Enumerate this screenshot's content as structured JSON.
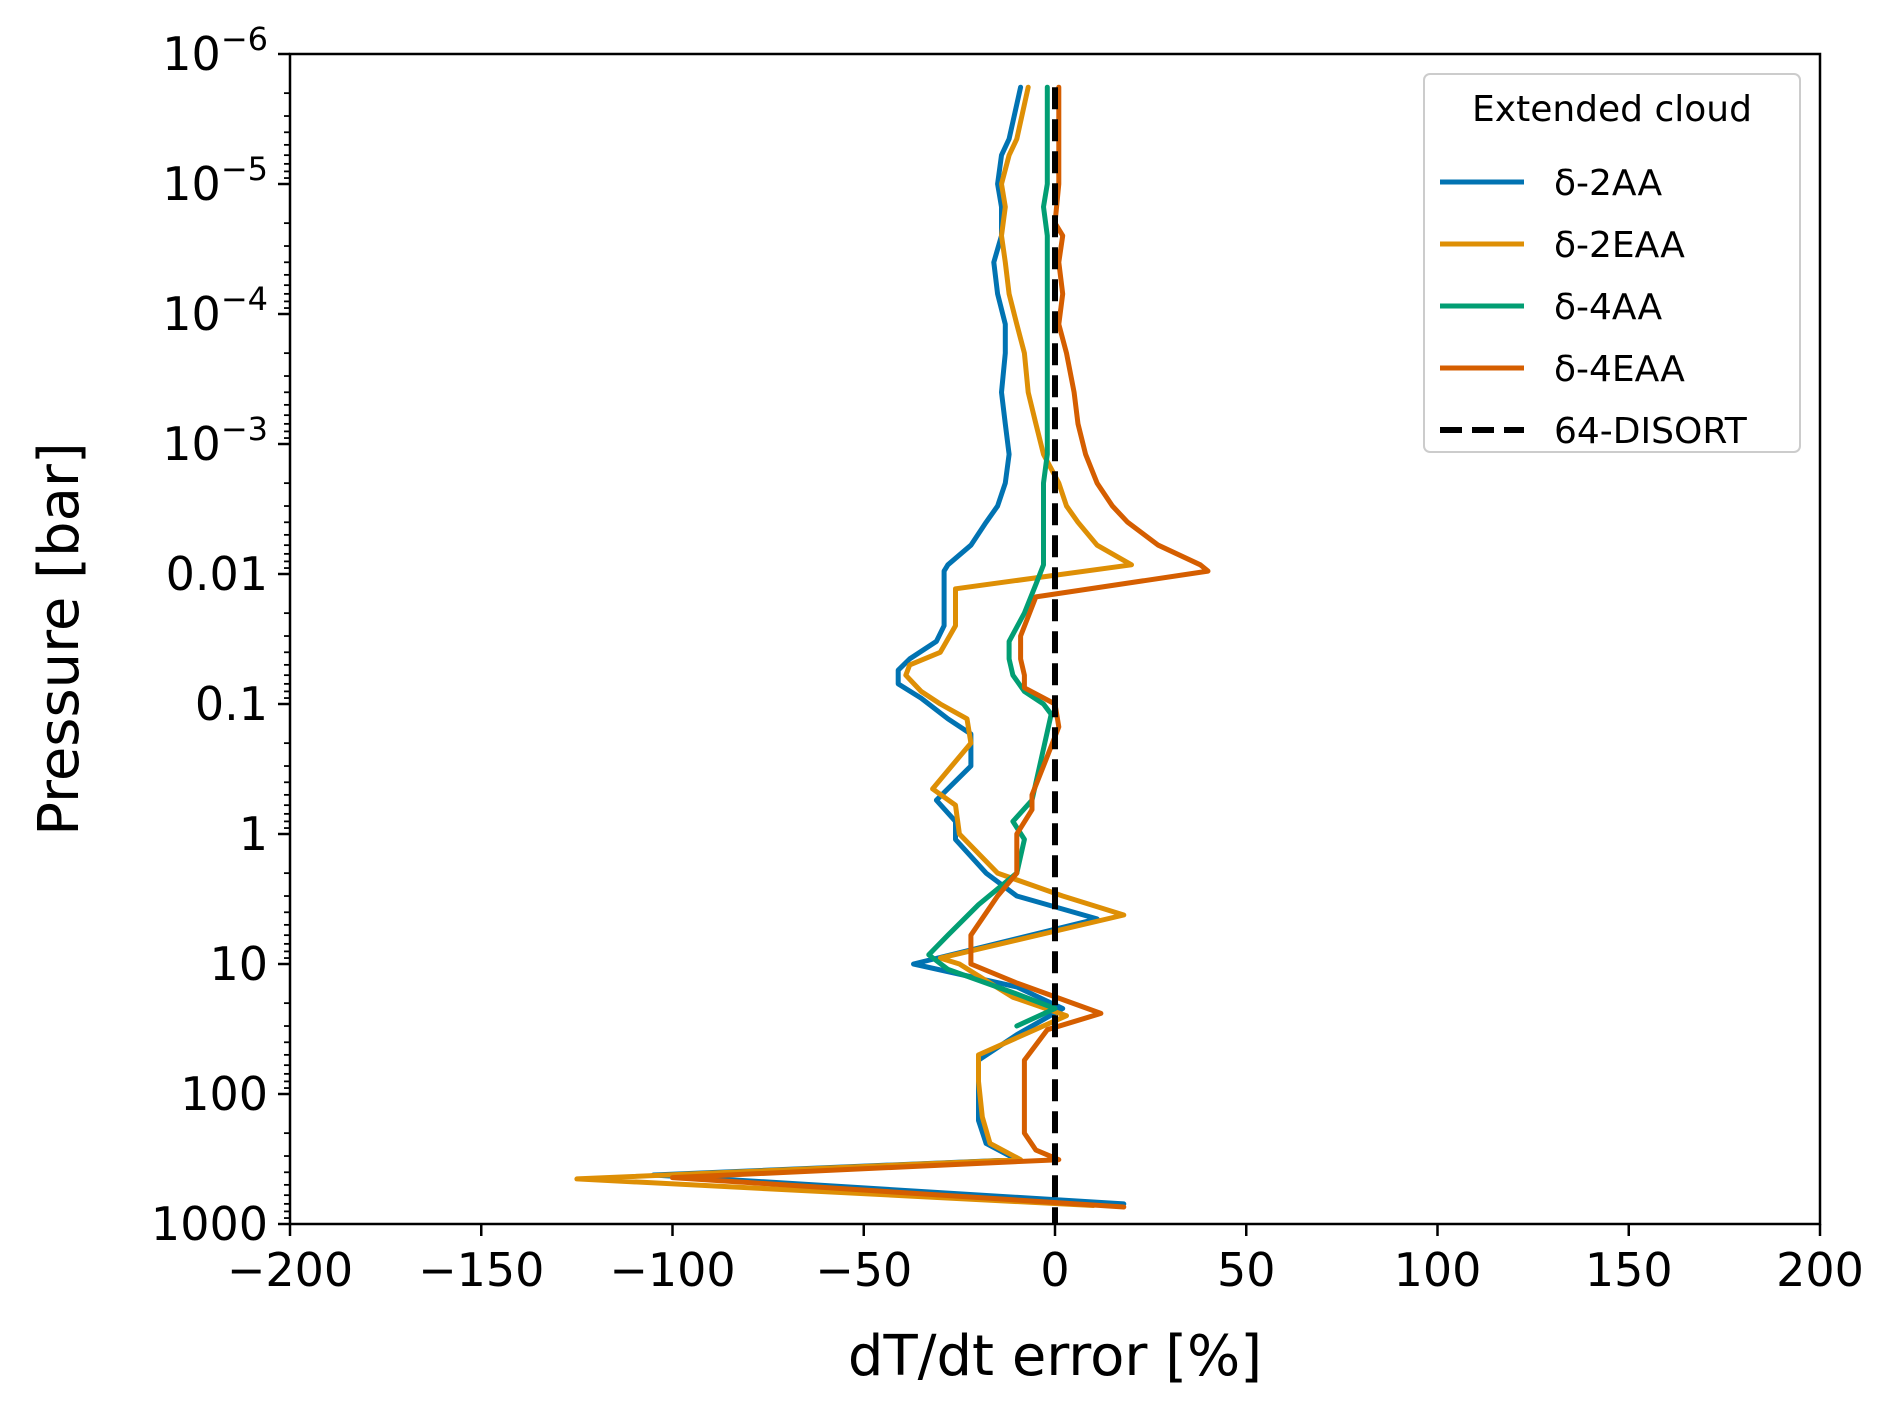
{
  "chart_data": {
    "type": "line",
    "xlabel": "dT/dt error [%]",
    "ylabel": "Pressure [bar]",
    "xlim": [
      -200,
      200
    ],
    "ylim": [
      1e-06,
      1000
    ],
    "yscale": "log",
    "y_inverted": true,
    "grid": false,
    "legend": {
      "placement": "top-right",
      "title": "Extended cloud",
      "entries": [
        "δ-2AA",
        "δ-2EAA",
        "δ-4AA",
        "δ-4EAA",
        "64-DISORT"
      ]
    },
    "x_ticks": [
      -200,
      -150,
      -100,
      -50,
      0,
      50,
      100,
      150,
      200
    ],
    "x_tick_labels": [
      "−200",
      "−150",
      "−100",
      "−50",
      "0",
      "50",
      "100",
      "150",
      "200"
    ],
    "y_tick_labels": [
      {
        "value": 1e-06,
        "base": "10",
        "exp": "−6"
      },
      {
        "value": 1e-05,
        "base": "10",
        "exp": "−5"
      },
      {
        "value": 0.0001,
        "base": "10",
        "exp": "−4"
      },
      {
        "value": 0.001,
        "base": "10",
        "exp": "−3"
      },
      {
        "value": 0.01,
        "base": "0.01",
        "exp": ""
      },
      {
        "value": 0.1,
        "base": "0.1",
        "exp": ""
      },
      {
        "value": 1,
        "base": "1",
        "exp": ""
      },
      {
        "value": 10,
        "base": "10",
        "exp": ""
      },
      {
        "value": 100,
        "base": "100",
        "exp": ""
      },
      {
        "value": 1000,
        "base": "1000",
        "exp": ""
      }
    ],
    "series": [
      {
        "name": "δ-2AA",
        "color": "#0173b2",
        "dash": "solid",
        "points": [
          [
            -9,
            1.8e-06
          ],
          [
            -12,
            4.5e-06
          ],
          [
            -14,
            6e-06
          ],
          [
            -15,
            1e-05
          ],
          [
            -14,
            1.5e-05
          ],
          [
            -14,
            2.5e-05
          ],
          [
            -16,
            4e-05
          ],
          [
            -15,
            7e-05
          ],
          [
            -13,
            0.00012
          ],
          [
            -13,
            0.0002
          ],
          [
            -14,
            0.0004
          ],
          [
            -13,
            0.0007
          ],
          [
            -12,
            0.0012
          ],
          [
            -13,
            0.002
          ],
          [
            -15,
            0.003
          ],
          [
            -18,
            0.004
          ],
          [
            -22,
            0.006
          ],
          [
            -28,
            0.0085
          ],
          [
            -29,
            0.0095
          ],
          [
            -29,
            0.015
          ],
          [
            -29,
            0.025
          ],
          [
            -31,
            0.033
          ],
          [
            -38,
            0.045
          ],
          [
            -41,
            0.055
          ],
          [
            -41,
            0.07
          ],
          [
            -35,
            0.09
          ],
          [
            -28,
            0.13
          ],
          [
            -22,
            0.17
          ],
          [
            -22,
            0.3
          ],
          [
            -31,
            0.55
          ],
          [
            -26,
            0.8
          ],
          [
            -26,
            1.1
          ],
          [
            -18,
            2
          ],
          [
            -10,
            3
          ],
          [
            11,
            4.5
          ],
          [
            -37,
            10
          ],
          [
            -10,
            15
          ],
          [
            2,
            22
          ],
          [
            -10,
            35
          ],
          [
            -20,
            55
          ],
          [
            -20,
            80
          ],
          [
            -20,
            160
          ],
          [
            -18,
            240
          ],
          [
            -10,
            320
          ],
          [
            -105,
            420
          ],
          [
            18,
            700
          ]
        ]
      },
      {
        "name": "δ-2EAA",
        "color": "#de8f05",
        "dash": "solid",
        "points": [
          [
            -7,
            1.8e-06
          ],
          [
            -10,
            4.5e-06
          ],
          [
            -12,
            6e-06
          ],
          [
            -14,
            1e-05
          ],
          [
            -13,
            1.5e-05
          ],
          [
            -14,
            2.5e-05
          ],
          [
            -13,
            4e-05
          ],
          [
            -12,
            7e-05
          ],
          [
            -10,
            0.00012
          ],
          [
            -8,
            0.0002
          ],
          [
            -7,
            0.0004
          ],
          [
            -5,
            0.0007
          ],
          [
            -3,
            0.0012
          ],
          [
            1,
            0.002
          ],
          [
            3,
            0.003
          ],
          [
            6,
            0.004
          ],
          [
            11,
            0.006
          ],
          [
            20,
            0.0085
          ],
          [
            -26,
            0.013
          ],
          [
            -26,
            0.025
          ],
          [
            -30,
            0.04
          ],
          [
            -38,
            0.05
          ],
          [
            -39,
            0.06
          ],
          [
            -35,
            0.08
          ],
          [
            -30,
            0.1
          ],
          [
            -23,
            0.13
          ],
          [
            -22,
            0.2
          ],
          [
            -27,
            0.3
          ],
          [
            -32,
            0.45
          ],
          [
            -26,
            0.6
          ],
          [
            -25,
            1.0
          ],
          [
            -15,
            2
          ],
          [
            2,
            3
          ],
          [
            18,
            4.2
          ],
          [
            -30,
            9
          ],
          [
            -25,
            10
          ],
          [
            -11,
            18
          ],
          [
            3,
            25
          ],
          [
            -20,
            50
          ],
          [
            -20,
            80
          ],
          [
            -19,
            150
          ],
          [
            -17,
            240
          ],
          [
            -9,
            320
          ],
          [
            -125,
            450
          ],
          [
            10,
            720
          ]
        ]
      },
      {
        "name": "δ-4AA",
        "color": "#029e73",
        "dash": "solid",
        "points": [
          [
            -2,
            1.8e-06
          ],
          [
            -2,
            4.5e-06
          ],
          [
            -2,
            1e-05
          ],
          [
            -3,
            1.5e-05
          ],
          [
            -2,
            2.5e-05
          ],
          [
            -2,
            5e-05
          ],
          [
            -2,
            0.0001
          ],
          [
            -2,
            0.0002
          ],
          [
            -2,
            0.0004
          ],
          [
            -2,
            0.0007
          ],
          [
            -2,
            0.0012
          ],
          [
            -3,
            0.002
          ],
          [
            -3,
            0.004
          ],
          [
            -3,
            0.006
          ],
          [
            -3,
            0.0085
          ],
          [
            -5,
            0.012
          ],
          [
            -8,
            0.02
          ],
          [
            -12,
            0.033
          ],
          [
            -12,
            0.045
          ],
          [
            -11,
            0.06
          ],
          [
            -8,
            0.08
          ],
          [
            -3,
            0.1
          ],
          [
            -1,
            0.12
          ],
          [
            -6,
            0.55
          ],
          [
            -11,
            0.8
          ],
          [
            -8,
            1.1
          ],
          [
            -10,
            2
          ],
          [
            -20,
            3.5
          ],
          [
            -28,
            6
          ],
          [
            -33,
            8.5
          ],
          [
            -28,
            11
          ],
          [
            -10,
            17
          ],
          [
            0,
            22
          ],
          [
            -10,
            30
          ]
        ]
      },
      {
        "name": "δ-4EAA",
        "color": "#d55e00",
        "dash": "solid",
        "points": [
          [
            1,
            1.8e-06
          ],
          [
            1,
            1e-05
          ],
          [
            0,
            2e-05
          ],
          [
            2,
            2.5e-05
          ],
          [
            1,
            4e-05
          ],
          [
            2,
            7e-05
          ],
          [
            1,
            0.00012
          ],
          [
            3,
            0.0002
          ],
          [
            5,
            0.0004
          ],
          [
            6,
            0.0007
          ],
          [
            8,
            0.0012
          ],
          [
            11,
            0.002
          ],
          [
            15,
            0.003
          ],
          [
            19,
            0.004
          ],
          [
            27,
            0.006
          ],
          [
            38,
            0.0085
          ],
          [
            40,
            0.0095
          ],
          [
            -5,
            0.015
          ],
          [
            -9,
            0.03
          ],
          [
            -9,
            0.045
          ],
          [
            -8,
            0.06
          ],
          [
            -8,
            0.075
          ],
          [
            0,
            0.1
          ],
          [
            1,
            0.15
          ],
          [
            -3,
            0.3
          ],
          [
            -6,
            0.5
          ],
          [
            -6,
            0.65
          ],
          [
            -10,
            1.0
          ],
          [
            -10,
            1.2
          ],
          [
            -10,
            2
          ],
          [
            -15,
            3
          ],
          [
            -22,
            6
          ],
          [
            -22,
            10
          ],
          [
            -10,
            14
          ],
          [
            12,
            24
          ],
          [
            -2,
            32
          ],
          [
            -8,
            55
          ],
          [
            -8,
            80
          ],
          [
            -8,
            200
          ],
          [
            -5,
            270
          ],
          [
            1,
            320
          ],
          [
            -100,
            440
          ],
          [
            18,
            740
          ]
        ]
      },
      {
        "name": "64-DISORT",
        "color": "#000000",
        "dash": "dashed",
        "points": [
          [
            0,
            1.8e-06
          ],
          [
            0,
            1000
          ]
        ]
      }
    ]
  }
}
